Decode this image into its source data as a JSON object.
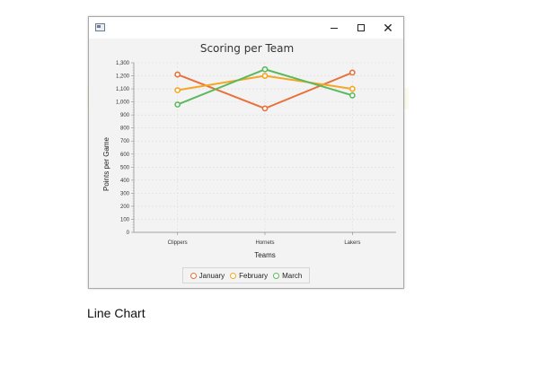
{
  "window": {
    "title": "",
    "minimize_glyph": "–",
    "maximize_glyph": "□",
    "close_glyph": "✕"
  },
  "caption": "Line Chart",
  "chart_data": {
    "type": "line",
    "title": "Scoring per Team",
    "xlabel": "Teams",
    "ylabel": "Points per Game",
    "categories": [
      "Clippers",
      "Hornets",
      "Lakers"
    ],
    "ylim": [
      0,
      1300
    ],
    "yticks": [
      0,
      100,
      200,
      300,
      400,
      500,
      600,
      700,
      800,
      900,
      1000,
      1100,
      1200,
      1300
    ],
    "ytick_labels": [
      "0",
      "100",
      "200",
      "300",
      "400",
      "500",
      "600",
      "700",
      "800",
      "900",
      "1,000",
      "1,100",
      "1,200",
      "1,300"
    ],
    "grid": true,
    "legend_position": "bottom",
    "series": [
      {
        "name": "January",
        "color": "#e8703a",
        "values": [
          1210,
          950,
          1225
        ]
      },
      {
        "name": "February",
        "color": "#f5a623",
        "values": [
          1090,
          1200,
          1100
        ]
      },
      {
        "name": "March",
        "color": "#5cb85c",
        "values": [
          980,
          1250,
          1050
        ]
      }
    ]
  }
}
